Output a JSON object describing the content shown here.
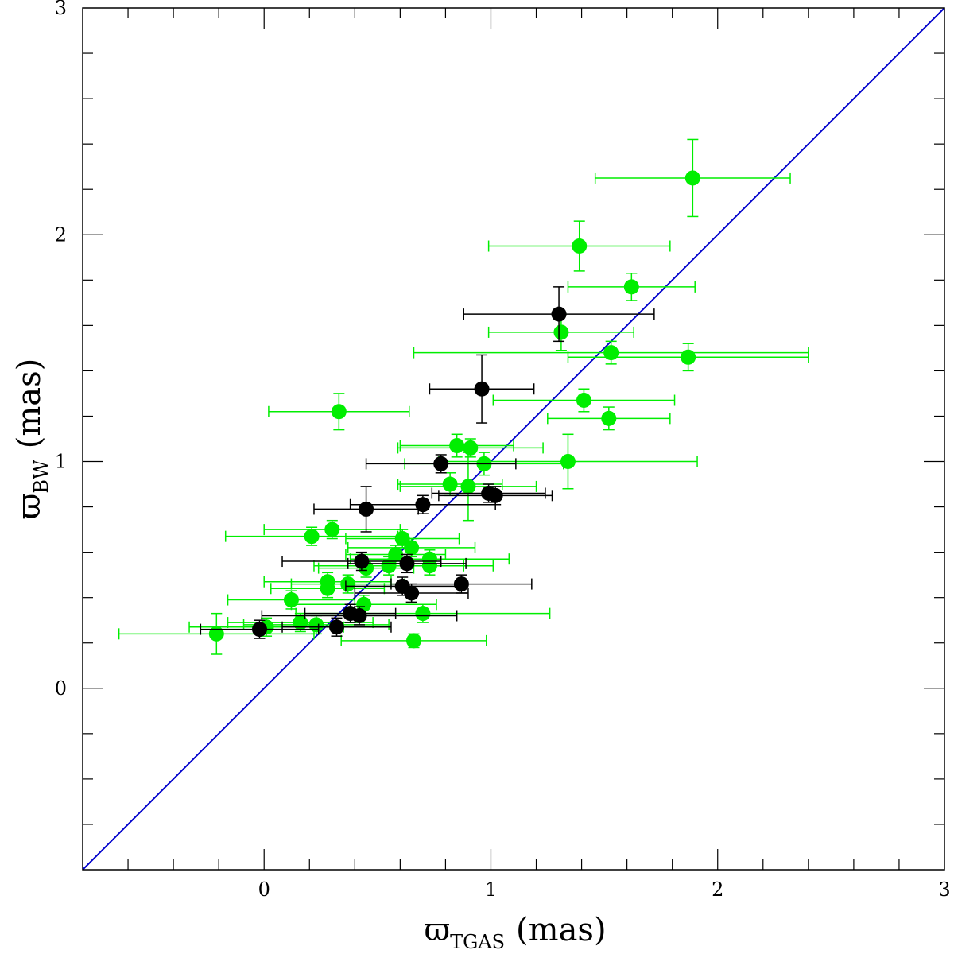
{
  "chart_data": {
    "type": "scatter",
    "xlabel": {
      "symbol": "ϖ",
      "subscript": "TGAS",
      "unit": "(mas)"
    },
    "ylabel": {
      "symbol": "ϖ",
      "subscript": "BW",
      "unit": "(mas)"
    },
    "xlim": [
      -0.8,
      3
    ],
    "ylim": [
      -0.8,
      3
    ],
    "x_ticks": [
      0,
      1,
      2,
      3
    ],
    "y_ticks": [
      0,
      1,
      2,
      3
    ],
    "x_tick_labels": [
      "0",
      "1",
      "2",
      "3"
    ],
    "y_tick_labels": [
      "0",
      "1",
      "2",
      "3"
    ],
    "grid": false,
    "reference_line": {
      "type": "identity",
      "color": "#0000cc"
    },
    "series": [
      {
        "color": "#00ee00",
        "points": [
          {
            "x": 1.89,
            "y": 2.25,
            "xerr": 0.43,
            "yerr": 0.17
          },
          {
            "x": 1.39,
            "y": 1.95,
            "xerr": 0.4,
            "yerr": 0.11
          },
          {
            "x": 1.62,
            "y": 1.77,
            "xerr": 0.28,
            "yerr": 0.06
          },
          {
            "x": 1.31,
            "y": 1.57,
            "xerr": 0.32,
            "yerr": 0.08
          },
          {
            "x": 1.53,
            "y": 1.48,
            "xerr": 0.87,
            "yerr": 0.05
          },
          {
            "x": 1.87,
            "y": 1.46,
            "xerr": 0.53,
            "yerr": 0.06
          },
          {
            "x": 1.41,
            "y": 1.27,
            "xerr": 0.4,
            "yerr": 0.05
          },
          {
            "x": 1.52,
            "y": 1.19,
            "xerr": 0.27,
            "yerr": 0.05
          },
          {
            "x": 0.33,
            "y": 1.22,
            "xerr": 0.31,
            "yerr": 0.08
          },
          {
            "x": 1.34,
            "y": 1.0,
            "xerr": 0.57,
            "yerr": 0.12
          },
          {
            "x": 0.85,
            "y": 1.07,
            "xerr": 0.25,
            "yerr": 0.05
          },
          {
            "x": 0.91,
            "y": 1.06,
            "xerr": 0.32,
            "yerr": 0.04
          },
          {
            "x": 0.97,
            "y": 0.99,
            "xerr": 0.35,
            "yerr": 0.05
          },
          {
            "x": 0.82,
            "y": 0.9,
            "xerr": 0.23,
            "yerr": 0.05
          },
          {
            "x": 0.9,
            "y": 0.89,
            "xerr": 0.3,
            "yerr": 0.15
          },
          {
            "x": 0.3,
            "y": 0.7,
            "xerr": 0.3,
            "yerr": 0.04
          },
          {
            "x": 0.21,
            "y": 0.67,
            "xerr": 0.38,
            "yerr": 0.04
          },
          {
            "x": 0.61,
            "y": 0.66,
            "xerr": 0.25,
            "yerr": 0.04
          },
          {
            "x": 0.65,
            "y": 0.62,
            "xerr": 0.28,
            "yerr": 0.04
          },
          {
            "x": 0.58,
            "y": 0.59,
            "xerr": 0.22,
            "yerr": 0.04
          },
          {
            "x": 0.73,
            "y": 0.57,
            "xerr": 0.35,
            "yerr": 0.04
          },
          {
            "x": 0.73,
            "y": 0.54,
            "xerr": 0.28,
            "yerr": 0.04
          },
          {
            "x": 0.55,
            "y": 0.54,
            "xerr": 0.33,
            "yerr": 0.04
          },
          {
            "x": 0.45,
            "y": 0.53,
            "xerr": 0.21,
            "yerr": 0.04
          },
          {
            "x": 0.28,
            "y": 0.47,
            "xerr": 0.28,
            "yerr": 0.04
          },
          {
            "x": 0.28,
            "y": 0.44,
            "xerr": 0.25,
            "yerr": 0.04
          },
          {
            "x": 0.37,
            "y": 0.46,
            "xerr": 0.25,
            "yerr": 0.04
          },
          {
            "x": 0.12,
            "y": 0.39,
            "xerr": 0.28,
            "yerr": 0.04
          },
          {
            "x": 0.44,
            "y": 0.37,
            "xerr": 0.32,
            "yerr": 0.04
          },
          {
            "x": 0.7,
            "y": 0.33,
            "xerr": 0.56,
            "yerr": 0.04
          },
          {
            "x": 0.16,
            "y": 0.29,
            "xerr": 0.32,
            "yerr": 0.04
          },
          {
            "x": 0.23,
            "y": 0.28,
            "xerr": 0.32,
            "yerr": 0.04
          },
          {
            "x": 0.01,
            "y": 0.27,
            "xerr": 0.34,
            "yerr": 0.04
          },
          {
            "x": -0.21,
            "y": 0.24,
            "xerr": 0.43,
            "yerr": 0.09
          },
          {
            "x": 0.66,
            "y": 0.21,
            "xerr": 0.32,
            "yerr": 0.03
          }
        ]
      },
      {
        "color": "#000000",
        "points": [
          {
            "x": 1.3,
            "y": 1.65,
            "xerr": 0.42,
            "yerr": 0.12
          },
          {
            "x": 0.96,
            "y": 1.32,
            "xerr": 0.23,
            "yerr": 0.15
          },
          {
            "x": 0.78,
            "y": 0.99,
            "xerr": 0.33,
            "yerr": 0.04
          },
          {
            "x": 0.99,
            "y": 0.86,
            "xerr": 0.25,
            "yerr": 0.04
          },
          {
            "x": 1.02,
            "y": 0.85,
            "xerr": 0.25,
            "yerr": 0.04
          },
          {
            "x": 0.7,
            "y": 0.81,
            "xerr": 0.32,
            "yerr": 0.04
          },
          {
            "x": 0.45,
            "y": 0.79,
            "xerr": 0.23,
            "yerr": 0.1
          },
          {
            "x": 0.43,
            "y": 0.56,
            "xerr": 0.35,
            "yerr": 0.04
          },
          {
            "x": 0.63,
            "y": 0.55,
            "xerr": 0.26,
            "yerr": 0.04
          },
          {
            "x": 0.87,
            "y": 0.46,
            "xerr": 0.31,
            "yerr": 0.04
          },
          {
            "x": 0.61,
            "y": 0.45,
            "xerr": 0.25,
            "yerr": 0.04
          },
          {
            "x": 0.65,
            "y": 0.42,
            "xerr": 0.25,
            "yerr": 0.04
          },
          {
            "x": 0.38,
            "y": 0.33,
            "xerr": 0.2,
            "yerr": 0.04
          },
          {
            "x": 0.42,
            "y": 0.32,
            "xerr": 0.43,
            "yerr": 0.04
          },
          {
            "x": 0.32,
            "y": 0.27,
            "xerr": 0.24,
            "yerr": 0.04
          },
          {
            "x": -0.02,
            "y": 0.26,
            "xerr": 0.26,
            "yerr": 0.04
          }
        ]
      }
    ]
  }
}
